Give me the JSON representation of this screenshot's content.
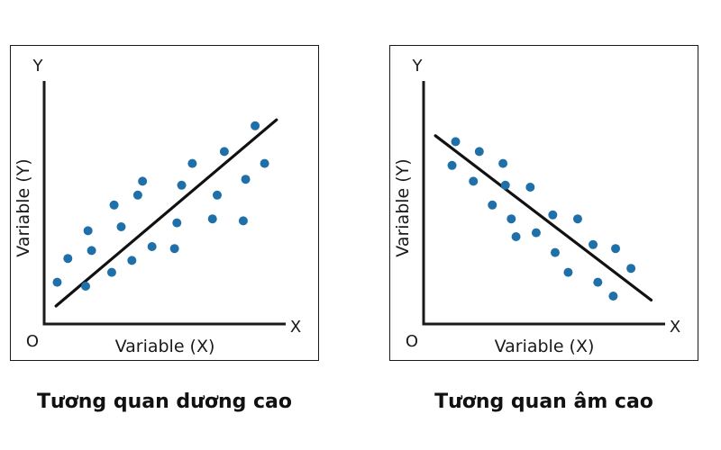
{
  "chart_data": [
    {
      "type": "scatter",
      "title": "Tương quan dương cao",
      "xlabel": "Variable (X)",
      "ylabel": "Variable (Y)",
      "x_axis_letter": "X",
      "y_axis_letter": "Y",
      "origin_label": "O",
      "xlim": [
        0,
        10
      ],
      "ylim": [
        0,
        10
      ],
      "grid": false,
      "legend": "none",
      "point_color": "#1f6fa8",
      "line_color": "#111111",
      "trend_line": {
        "from": [
          0.5,
          0.5
        ],
        "to": [
          9.8,
          9.9
        ]
      },
      "points": [
        {
          "x": 0.55,
          "y": 1.7
        },
        {
          "x": 1.0,
          "y": 2.9
        },
        {
          "x": 1.75,
          "y": 1.5
        },
        {
          "x": 1.85,
          "y": 4.3
        },
        {
          "x": 2.0,
          "y": 3.3
        },
        {
          "x": 2.85,
          "y": 2.2
        },
        {
          "x": 2.95,
          "y": 5.6
        },
        {
          "x": 3.25,
          "y": 4.5
        },
        {
          "x": 3.7,
          "y": 2.8
        },
        {
          "x": 3.95,
          "y": 6.1
        },
        {
          "x": 4.15,
          "y": 6.8
        },
        {
          "x": 4.55,
          "y": 3.5
        },
        {
          "x": 5.5,
          "y": 3.4
        },
        {
          "x": 5.6,
          "y": 4.7
        },
        {
          "x": 5.8,
          "y": 6.6
        },
        {
          "x": 6.25,
          "y": 7.7
        },
        {
          "x": 7.1,
          "y": 4.9
        },
        {
          "x": 7.3,
          "y": 6.1
        },
        {
          "x": 7.6,
          "y": 8.3
        },
        {
          "x": 8.4,
          "y": 4.8
        },
        {
          "x": 8.5,
          "y": 6.9
        },
        {
          "x": 8.9,
          "y": 9.6
        },
        {
          "x": 9.3,
          "y": 7.7
        }
      ]
    },
    {
      "type": "scatter",
      "title": "Tương quan âm cao",
      "xlabel": "Variable (X)",
      "ylabel": "Variable (Y)",
      "x_axis_letter": "X",
      "y_axis_letter": "Y",
      "origin_label": "O",
      "xlim": [
        0,
        10
      ],
      "ylim": [
        0,
        10
      ],
      "grid": false,
      "legend": "none",
      "point_color": "#1f6fa8",
      "line_color": "#111111",
      "trend_line": {
        "from": [
          0.5,
          9.1
        ],
        "to": [
          9.6,
          0.8
        ]
      },
      "points": [
        {
          "x": 1.35,
          "y": 8.8
        },
        {
          "x": 1.2,
          "y": 7.6
        },
        {
          "x": 2.35,
          "y": 8.3
        },
        {
          "x": 2.1,
          "y": 6.8
        },
        {
          "x": 3.35,
          "y": 7.7
        },
        {
          "x": 2.9,
          "y": 5.6
        },
        {
          "x": 3.45,
          "y": 6.6
        },
        {
          "x": 3.7,
          "y": 4.9
        },
        {
          "x": 3.9,
          "y": 4.0
        },
        {
          "x": 4.5,
          "y": 6.5
        },
        {
          "x": 4.75,
          "y": 4.2
        },
        {
          "x": 5.45,
          "y": 5.1
        },
        {
          "x": 5.55,
          "y": 3.2
        },
        {
          "x": 6.1,
          "y": 2.2
        },
        {
          "x": 6.5,
          "y": 4.9
        },
        {
          "x": 7.15,
          "y": 3.6
        },
        {
          "x": 7.35,
          "y": 1.7
        },
        {
          "x": 8.0,
          "y": 1.0
        },
        {
          "x": 8.1,
          "y": 3.4
        },
        {
          "x": 8.75,
          "y": 2.4
        }
      ]
    }
  ]
}
